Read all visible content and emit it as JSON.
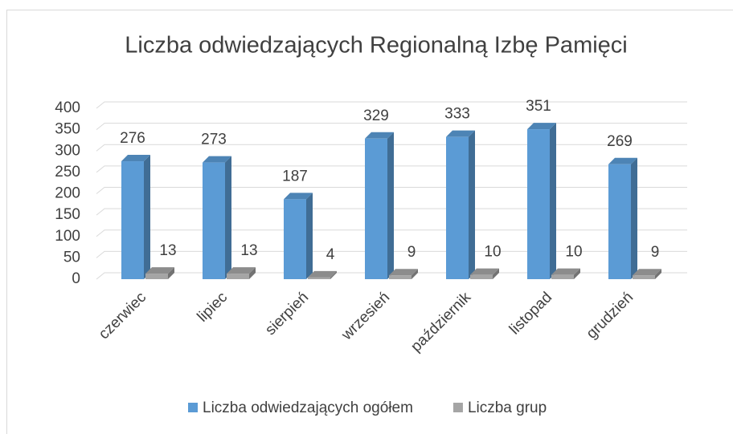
{
  "chart_data": {
    "type": "bar3d",
    "title": "Liczba odwiedzających Regionalną Izbę Pamięci",
    "categories": [
      "czerwiec",
      "lipiec",
      "sierpień",
      "wrzesień",
      "październik",
      "listopad",
      "grudzień"
    ],
    "series": [
      {
        "name": "Liczba odwiedzających ogółem",
        "color": "#5b9bd5",
        "values": [
          276,
          273,
          187,
          329,
          333,
          351,
          269
        ]
      },
      {
        "name": "Liczba grup",
        "color": "#a5a5a5",
        "values": [
          13,
          13,
          4,
          9,
          10,
          10,
          9
        ]
      }
    ],
    "ylim": [
      0,
      400
    ],
    "yticks": [
      0,
      50,
      100,
      150,
      200,
      250,
      300,
      350,
      400
    ],
    "grid": true,
    "legend": "bottom"
  }
}
